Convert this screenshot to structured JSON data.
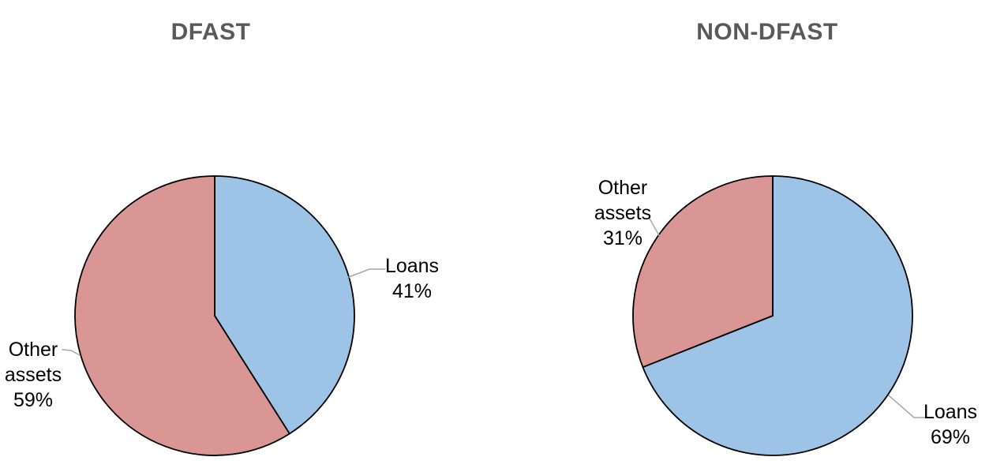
{
  "page": {
    "background_color": "#FFFFFF"
  },
  "chart_data": [
    {
      "type": "pie",
      "title": "DFAST",
      "categories": [
        "Loans",
        "Other assets"
      ],
      "values": [
        41,
        59
      ],
      "unit": "%",
      "start_angle_deg": 0,
      "direction": "clockwise",
      "legend_position": "none",
      "data_labels": "outside-end-with-leader-lines",
      "series": [
        {
          "name": "Loans",
          "value": 41,
          "color": "#9DC3E6",
          "label_lines": [
            "Loans",
            "41%"
          ]
        },
        {
          "name": "Other assets",
          "value": 59,
          "color": "#D99694",
          "label_lines": [
            "Other",
            "assets",
            "59%"
          ]
        }
      ]
    },
    {
      "type": "pie",
      "title": "NON-DFAST",
      "categories": [
        "Loans",
        "Other assets"
      ],
      "values": [
        69,
        31
      ],
      "unit": "%",
      "start_angle_deg": 0,
      "direction": "clockwise",
      "legend_position": "none",
      "data_labels": "outside-end-with-leader-lines",
      "series": [
        {
          "name": "Loans",
          "value": 69,
          "color": "#9DC3E6",
          "label_lines": [
            "Loans",
            "69%"
          ]
        },
        {
          "name": "Other assets",
          "value": 31,
          "color": "#D99694",
          "label_lines": [
            "Other",
            "assets",
            "31%"
          ]
        }
      ]
    }
  ],
  "style": {
    "title_color": "#595959",
    "label_color": "#000000",
    "slice_outline_color": "#000000",
    "leader_line_color": "#A6A6A6"
  }
}
